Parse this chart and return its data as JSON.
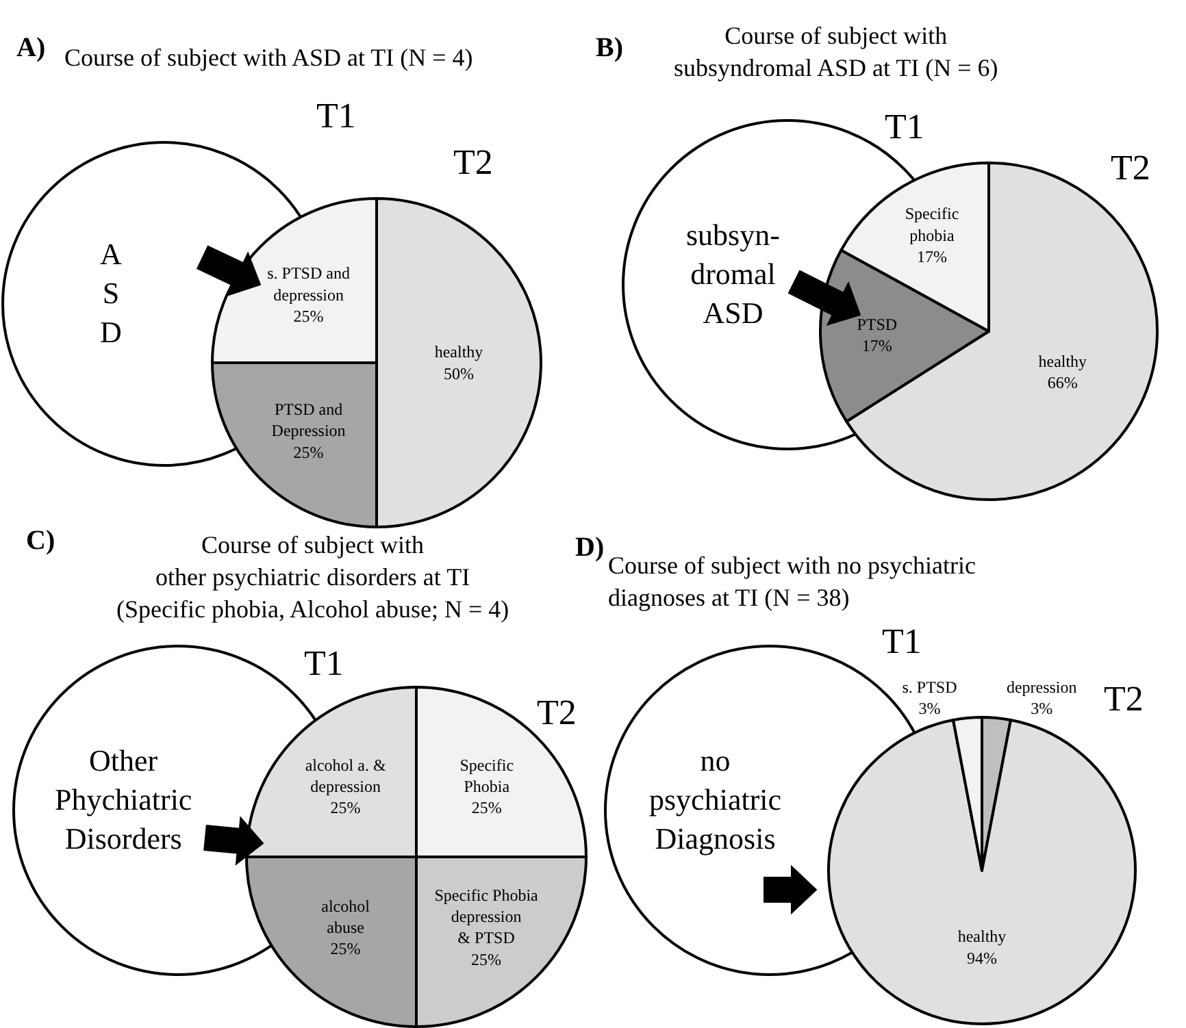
{
  "chart_data": [
    {
      "type": "pie",
      "title": "Course of subject with ASD at TI (N = 4)",
      "categories": [
        "healthy",
        "PTSD and\nDepression",
        "s. PTSD and\ndepression"
      ],
      "values": [
        50,
        25,
        25
      ],
      "value_labels": [
        "50%",
        "25%",
        "25%"
      ],
      "colors": [
        "#e0e0e0",
        "#a6a6a6",
        "#f2f2f2"
      ],
      "annotations": [
        "A)",
        "T1",
        "T2",
        "A\nS\nD"
      ]
    },
    {
      "type": "pie",
      "title": "Course of subject with\nsubsyndromal ASD at TI (N = 6)",
      "categories": [
        "healthy",
        "PTSD",
        "Specific\nphobia"
      ],
      "values": [
        66,
        17,
        17
      ],
      "value_labels": [
        "66%",
        "17%",
        "17%"
      ],
      "colors": [
        "#e0e0e0",
        "#8c8c8c",
        "#f2f2f2"
      ],
      "annotations": [
        "B)",
        "T1",
        "T2",
        "subsyn-\ndromal\nASD"
      ]
    },
    {
      "type": "pie",
      "title": "Course of subject with\nother psychiatric disorders at TI\n(Specific phobia, Alcohol abuse; N = 4)",
      "categories": [
        "Specific\nPhobia",
        "Specific Phobia\ndepression\n& PTSD",
        "alcohol\nabuse",
        "alcohol a. &\ndepression"
      ],
      "values": [
        25,
        25,
        25,
        25
      ],
      "value_labels": [
        "25%",
        "25%",
        "25%",
        "25%"
      ],
      "colors": [
        "#f2f2f2",
        "#cccccc",
        "#a6a6a6",
        "#e0e0e0"
      ],
      "annotations": [
        "C)",
        "T1",
        "T2",
        "Other\nPhychiatric\nDisorders"
      ]
    },
    {
      "type": "pie",
      "title": "Course of subject with no psychiatric\ndiagnoses at TI (N = 38)",
      "categories": [
        "depression",
        "healthy",
        "s. PTSD"
      ],
      "values": [
        3,
        94,
        3
      ],
      "value_labels": [
        "3%",
        "94%",
        "3%"
      ],
      "colors": [
        "#bfbfbf",
        "#e0e0e0",
        "#f2f2f2"
      ],
      "annotations": [
        "D)",
        "T1",
        "T2",
        "no\npsychiatric\nDiagnosis"
      ]
    }
  ]
}
